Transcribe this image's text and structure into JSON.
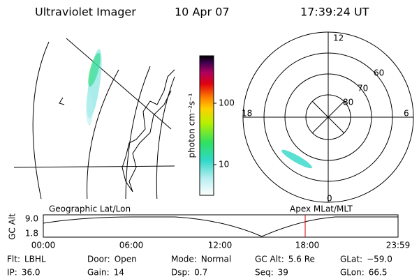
{
  "header": {
    "title": "Ultraviolet Imager",
    "date": "10 Apr 07",
    "time": "17:39:24 UT"
  },
  "colorbar": {
    "label": "photon cm⁻²s⁻¹",
    "ticks": [
      "100",
      "10"
    ]
  },
  "polar": {
    "mlt_labels": [
      "12",
      "18",
      "6",
      "0"
    ],
    "lat_labels": [
      "60",
      "70",
      "80"
    ]
  },
  "timeline": {
    "left_title": "Geographic Lat/Lon",
    "right_title": "Apex MLat/MLT",
    "axis_label": "GC Alt",
    "y_labels": [
      "9.0",
      "1.8"
    ],
    "x_labels": [
      "00:00",
      "06:00",
      "12:00",
      "18:00",
      "23:59"
    ]
  },
  "status": [
    [
      {
        "label": "Flt:",
        "value": "LBHL"
      },
      {
        "label": "Door:",
        "value": "Open"
      },
      {
        "label": "Mode:",
        "value": "Normal"
      },
      {
        "label": "GC Alt:",
        "value": "5.6 Re"
      },
      {
        "label": "GLat:",
        "value": "−59.0"
      }
    ],
    [
      {
        "label": "IP:",
        "value": "36.0"
      },
      {
        "label": "Gain:",
        "value": "14"
      },
      {
        "label": "Dsp:",
        "value": "0.7"
      },
      {
        "label": "Seq:",
        "value": "39"
      },
      {
        "label": "GLon:",
        "value": "66.5"
      }
    ]
  ]
}
